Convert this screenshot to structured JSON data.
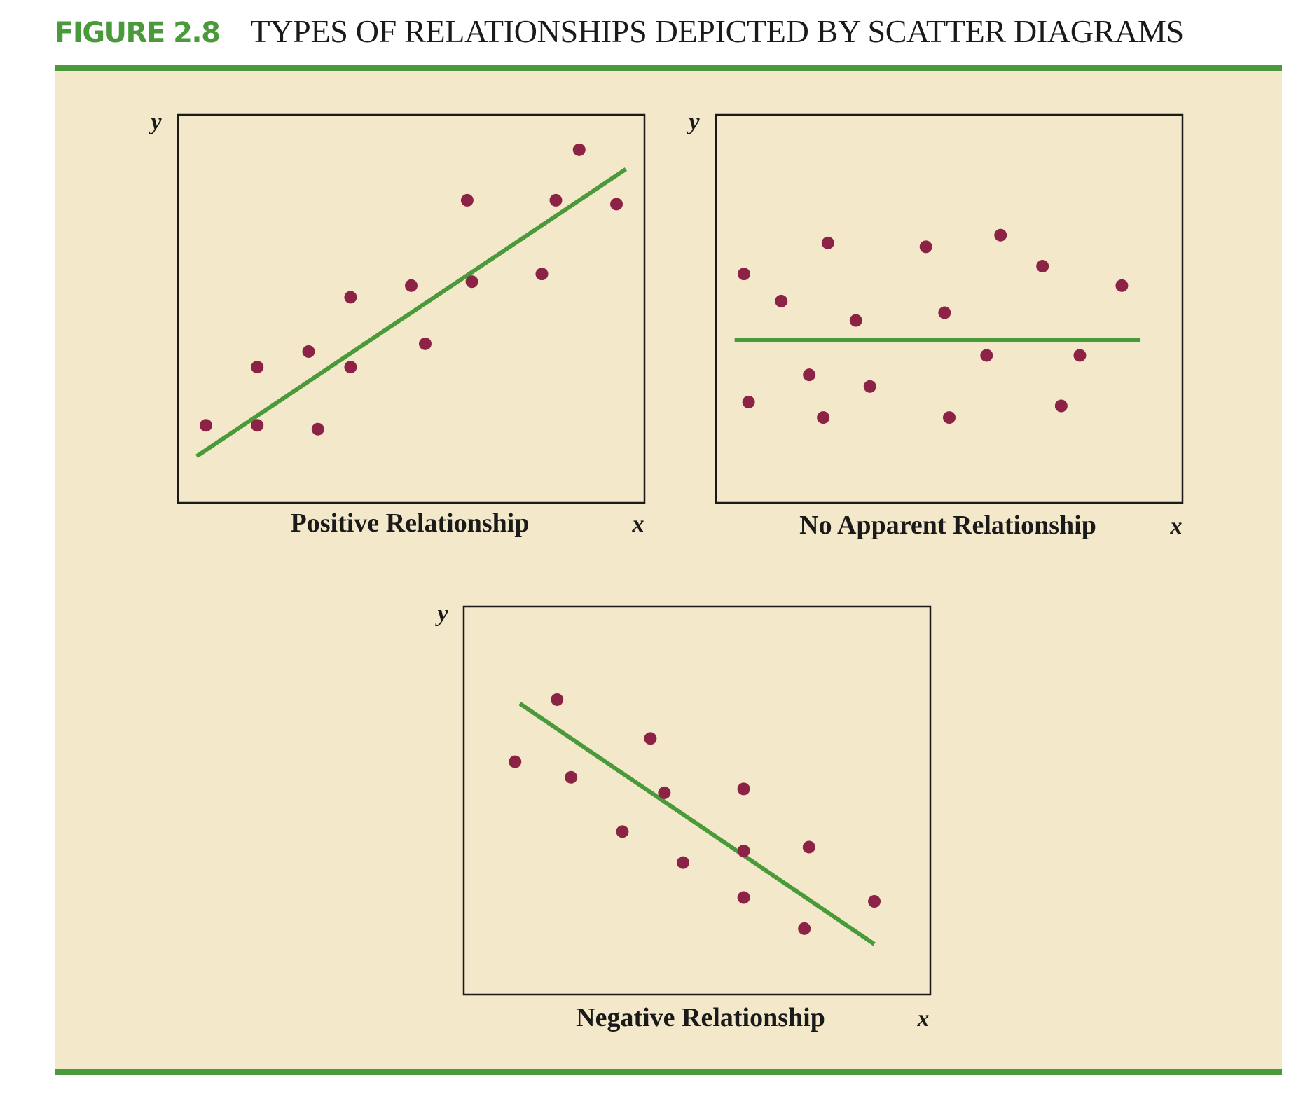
{
  "figure": {
    "number": "FIGURE 2.8",
    "title": "TYPES OF RELATIONSHIPS DEPICTED BY SCATTER DIAGRAMS"
  },
  "colors": {
    "accent_green": "#4a9a3c",
    "background": "#f3e8c9",
    "point": "#8c2346",
    "frame": "#1a1a1a"
  },
  "chart_data": [
    {
      "type": "scatter",
      "caption": "Positive Relationship",
      "xlabel": "x",
      "ylabel": "y",
      "xlim": [
        0,
        100
      ],
      "ylim": [
        0,
        100
      ],
      "points": [
        {
          "x": 6,
          "y": 20
        },
        {
          "x": 17,
          "y": 35
        },
        {
          "x": 17,
          "y": 20
        },
        {
          "x": 28,
          "y": 39
        },
        {
          "x": 30,
          "y": 19
        },
        {
          "x": 37,
          "y": 53
        },
        {
          "x": 37,
          "y": 35
        },
        {
          "x": 50,
          "y": 56
        },
        {
          "x": 53,
          "y": 41
        },
        {
          "x": 62,
          "y": 78
        },
        {
          "x": 63,
          "y": 57
        },
        {
          "x": 78,
          "y": 59
        },
        {
          "x": 81,
          "y": 78
        },
        {
          "x": 86,
          "y": 91
        },
        {
          "x": 94,
          "y": 77
        }
      ],
      "trendline": {
        "x1": 4,
        "y1": 12,
        "x2": 96,
        "y2": 86
      }
    },
    {
      "type": "scatter",
      "caption": "No Apparent Relationship",
      "xlabel": "x",
      "ylabel": "y",
      "xlim": [
        0,
        100
      ],
      "ylim": [
        0,
        100
      ],
      "points": [
        {
          "x": 6,
          "y": 59
        },
        {
          "x": 14,
          "y": 52
        },
        {
          "x": 24,
          "y": 67
        },
        {
          "x": 30,
          "y": 47
        },
        {
          "x": 45,
          "y": 66
        },
        {
          "x": 49,
          "y": 49
        },
        {
          "x": 61,
          "y": 69
        },
        {
          "x": 70,
          "y": 61
        },
        {
          "x": 87,
          "y": 56
        },
        {
          "x": 7,
          "y": 26
        },
        {
          "x": 20,
          "y": 33
        },
        {
          "x": 23,
          "y": 22
        },
        {
          "x": 33,
          "y": 30
        },
        {
          "x": 50,
          "y": 22
        },
        {
          "x": 58,
          "y": 38
        },
        {
          "x": 74,
          "y": 25
        },
        {
          "x": 78,
          "y": 38
        }
      ],
      "trendline": {
        "x1": 4,
        "y1": 42,
        "x2": 91,
        "y2": 42
      }
    },
    {
      "type": "scatter",
      "caption": "Negative Relationship",
      "xlabel": "x",
      "ylabel": "y",
      "xlim": [
        0,
        100
      ],
      "ylim": [
        0,
        100
      ],
      "points": [
        {
          "x": 11,
          "y": 60
        },
        {
          "x": 20,
          "y": 76
        },
        {
          "x": 23,
          "y": 56
        },
        {
          "x": 34,
          "y": 42
        },
        {
          "x": 40,
          "y": 66
        },
        {
          "x": 43,
          "y": 52
        },
        {
          "x": 47,
          "y": 34
        },
        {
          "x": 60,
          "y": 53
        },
        {
          "x": 60,
          "y": 37
        },
        {
          "x": 60,
          "y": 25
        },
        {
          "x": 74,
          "y": 38
        },
        {
          "x": 73,
          "y": 17
        },
        {
          "x": 88,
          "y": 24
        }
      ],
      "trendline": {
        "x1": 12,
        "y1": 75,
        "x2": 88,
        "y2": 13
      }
    }
  ]
}
